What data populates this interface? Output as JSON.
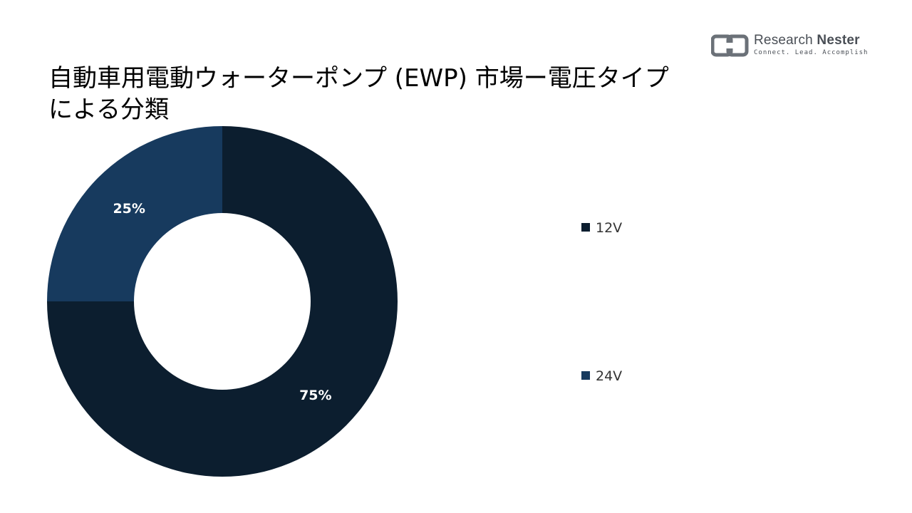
{
  "title": "自動車用電動ウォーターポンプ (EWP) 市場ー電圧タイプによる分類",
  "logo": {
    "name_light": "Research",
    "name_bold": "Nester",
    "tagline": "Connect. Lead. Accomplish"
  },
  "chart_data": {
    "type": "pie",
    "style": "donut",
    "title": "自動車用電動ウォーターポンプ (EWP) 市場ー電圧タイプによる分類",
    "categories": [
      "12V",
      "24V"
    ],
    "values": [
      75,
      25
    ],
    "data_labels": [
      "75%",
      "25%"
    ],
    "colors": [
      "#0c1e2f",
      "#173a5e"
    ],
    "legend_position": "right"
  }
}
